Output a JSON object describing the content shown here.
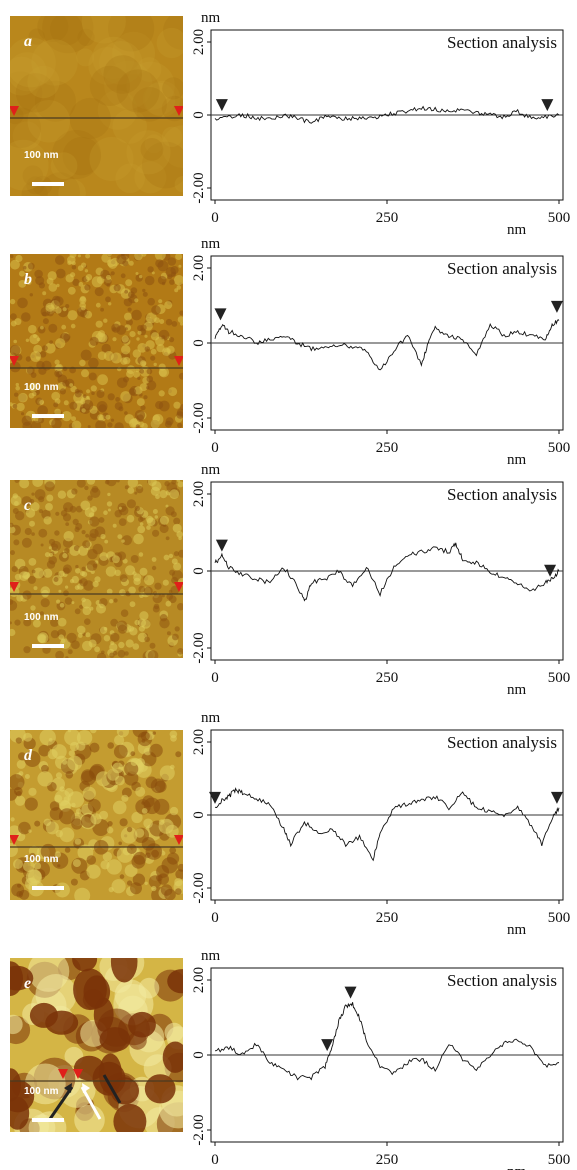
{
  "figure": {
    "panels": [
      {
        "label": "a",
        "scale_bar": "100 nm",
        "y_unit": "nm",
        "x_unit": "nm",
        "y_ticks": [
          "2.00",
          "0",
          "-2.00"
        ],
        "x_ticks": [
          "0",
          "250",
          "500"
        ],
        "chart_title": "Section analysis",
        "image_colors": {
          "base": "#b9871c",
          "light": "#c99e2e",
          "dark": "#a4700f"
        },
        "markers": [
          {
            "x": 10,
            "y": 0.05
          },
          {
            "x": 483,
            "y": 0.05
          }
        ]
      },
      {
        "label": "b",
        "scale_bar": "100 nm",
        "y_unit": "nm",
        "x_unit": "nm",
        "y_ticks": [
          "2.00",
          "0",
          "-2.00"
        ],
        "x_ticks": [
          "0",
          "250",
          "500"
        ],
        "chart_title": "Section analysis",
        "image_colors": {
          "base": "#b27a16",
          "light": "#d8c04a",
          "dark": "#8e5210"
        },
        "markers": [
          {
            "x": 8,
            "y": 0.55
          },
          {
            "x": 497,
            "y": 0.75
          }
        ]
      },
      {
        "label": "c",
        "scale_bar": "100 nm",
        "y_unit": "nm",
        "x_unit": "nm",
        "y_ticks": [
          "2.00",
          "0",
          "-2.00"
        ],
        "x_ticks": [
          "0",
          "250",
          "500"
        ],
        "chart_title": "Section analysis",
        "image_colors": {
          "base": "#b78a24",
          "light": "#dccb58",
          "dark": "#925810"
        },
        "markers": [
          {
            "x": 10,
            "y": 0.45
          },
          {
            "x": 487,
            "y": -0.2
          }
        ]
      },
      {
        "label": "d",
        "scale_bar": "100 nm",
        "y_unit": "nm",
        "x_unit": "nm",
        "y_ticks": [
          "2.00",
          "0",
          "-2.00"
        ],
        "x_ticks": [
          "0",
          "250",
          "500"
        ],
        "chart_title": "Section analysis",
        "image_colors": {
          "base": "#c49c30",
          "light": "#e0d062",
          "dark": "#8a4c0c"
        },
        "markers": [
          {
            "x": 0,
            "y": 0.25
          },
          {
            "x": 497,
            "y": 0.25
          }
        ]
      },
      {
        "label": "e",
        "scale_bar": "100 nm",
        "y_unit": "nm",
        "x_unit": "nm",
        "y_ticks": [
          "2.00",
          "0",
          "-2.00"
        ],
        "x_ticks": [
          "0",
          "250",
          "500"
        ],
        "chart_title": "Section analysis",
        "image_colors": {
          "base": "#d4b545",
          "light": "#f2eaa0",
          "dark": "#7a3208"
        },
        "markers": [
          {
            "x": 163,
            "y": 0.05
          },
          {
            "x": 197,
            "y": 1.45
          }
        ]
      }
    ]
  },
  "chart_data": [
    {
      "type": "line",
      "title": "Section analysis",
      "xlabel": "nm",
      "ylabel": "nm",
      "xlim": [
        0,
        500
      ],
      "ylim": [
        -2.0,
        2.0
      ],
      "x_ticks": [
        0,
        250,
        500
      ],
      "y_ticks": [
        2.0,
        0,
        -2.0
      ],
      "x": [
        0,
        20,
        40,
        60,
        80,
        100,
        120,
        140,
        160,
        180,
        200,
        220,
        240,
        260,
        280,
        300,
        320,
        340,
        360,
        380,
        400,
        420,
        440,
        460,
        480,
        500
      ],
      "values": [
        -0.1,
        -0.05,
        0.0,
        -0.08,
        -0.1,
        0.0,
        -0.1,
        -0.2,
        -0.05,
        -0.1,
        -0.1,
        -0.1,
        -0.05,
        0.05,
        0.1,
        0.2,
        0.15,
        0.1,
        0.15,
        0.05,
        0.0,
        -0.05,
        0.1,
        -0.1,
        -0.05,
        0.0
      ]
    },
    {
      "type": "line",
      "title": "Section analysis",
      "xlabel": "nm",
      "ylabel": "nm",
      "xlim": [
        0,
        500
      ],
      "ylim": [
        -2.0,
        2.0
      ],
      "x_ticks": [
        0,
        250,
        500
      ],
      "y_ticks": [
        2.0,
        0,
        -2.0
      ],
      "x": [
        0,
        10,
        20,
        40,
        60,
        80,
        100,
        120,
        140,
        160,
        180,
        200,
        220,
        240,
        260,
        280,
        300,
        310,
        320,
        340,
        360,
        380,
        400,
        420,
        440,
        460,
        480,
        490,
        500
      ],
      "values": [
        0.1,
        0.5,
        0.3,
        0.2,
        0.0,
        0.1,
        0.2,
        0.0,
        -0.15,
        -0.1,
        -0.05,
        -0.1,
        -0.2,
        -0.75,
        -0.2,
        0.2,
        -0.6,
        0.0,
        0.4,
        0.2,
        0.1,
        -0.3,
        0.5,
        0.2,
        0.3,
        0.2,
        0.1,
        0.5,
        0.6
      ]
    },
    {
      "type": "line",
      "title": "Section analysis",
      "xlabel": "nm",
      "ylabel": "nm",
      "xlim": [
        0,
        500
      ],
      "ylim": [
        -2.0,
        2.0
      ],
      "x_ticks": [
        0,
        250,
        500
      ],
      "y_ticks": [
        2.0,
        0,
        -2.0
      ],
      "x": [
        0,
        10,
        20,
        40,
        60,
        80,
        100,
        120,
        130,
        140,
        160,
        180,
        200,
        220,
        240,
        260,
        280,
        300,
        320,
        340,
        350,
        360,
        380,
        400,
        420,
        440,
        460,
        480,
        490,
        500
      ],
      "values": [
        0.2,
        0.4,
        0.1,
        -0.1,
        -0.2,
        -0.3,
        0.1,
        -0.4,
        -0.8,
        -0.3,
        -0.2,
        0.0,
        -0.4,
        0.1,
        -0.6,
        0.1,
        0.4,
        0.5,
        0.6,
        0.5,
        0.7,
        0.3,
        0.2,
        0.0,
        -0.2,
        -0.3,
        -0.5,
        -0.3,
        -0.2,
        0.0
      ]
    },
    {
      "type": "line",
      "title": "Section analysis",
      "xlabel": "nm",
      "ylabel": "nm",
      "xlim": [
        0,
        500
      ],
      "ylim": [
        -2.0,
        2.0
      ],
      "x_ticks": [
        0,
        250,
        500
      ],
      "y_ticks": [
        2.0,
        0,
        -2.0
      ],
      "x": [
        0,
        10,
        20,
        30,
        40,
        60,
        80,
        100,
        110,
        130,
        150,
        170,
        190,
        210,
        230,
        240,
        260,
        280,
        300,
        320,
        340,
        360,
        380,
        400,
        420,
        440,
        460,
        475,
        490,
        500
      ],
      "values": [
        0.2,
        0.4,
        0.5,
        0.7,
        0.6,
        0.45,
        0.3,
        -0.4,
        -0.8,
        -0.2,
        -0.5,
        -0.4,
        -0.8,
        -0.6,
        -1.2,
        -0.5,
        0.2,
        0.3,
        0.4,
        0.5,
        0.2,
        0.6,
        0.2,
        0.1,
        0.0,
        0.2,
        -0.3,
        -0.8,
        -0.1,
        0.2
      ]
    },
    {
      "type": "line",
      "title": "Section analysis",
      "xlabel": "nm",
      "ylabel": "nm",
      "xlim": [
        0,
        500
      ],
      "ylim": [
        -2.0,
        2.0
      ],
      "x_ticks": [
        0,
        250,
        500
      ],
      "y_ticks": [
        2.0,
        0,
        -2.0
      ],
      "x": [
        0,
        20,
        40,
        60,
        80,
        100,
        120,
        140,
        160,
        170,
        180,
        190,
        200,
        210,
        220,
        240,
        260,
        280,
        300,
        320,
        340,
        360,
        380,
        400,
        420,
        440,
        460,
        480,
        500
      ],
      "values": [
        0.1,
        0.2,
        0.0,
        0.3,
        -0.2,
        -0.4,
        -0.6,
        -0.6,
        -0.3,
        0.2,
        0.9,
        1.3,
        1.35,
        1.0,
        0.4,
        -0.3,
        -0.5,
        -0.2,
        -0.1,
        -0.4,
        0.3,
        -0.1,
        -0.4,
        0.0,
        0.3,
        0.4,
        0.2,
        -0.3,
        -0.2
      ]
    }
  ]
}
